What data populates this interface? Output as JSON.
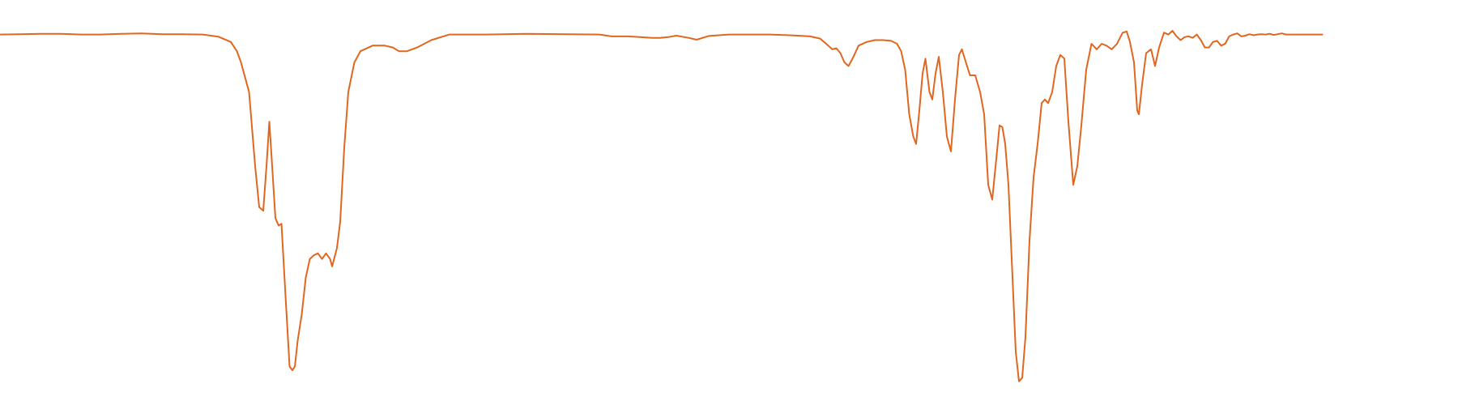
{
  "chart_data": {
    "type": "line",
    "title": "",
    "xlabel": "",
    "ylabel": "",
    "axes_visible": false,
    "grid": false,
    "legend": "none",
    "x_direction": "decreasing",
    "xlim": [
      4000,
      400
    ],
    "ylim": [
      0,
      100
    ],
    "color": "#e1661e",
    "series": [
      {
        "values": [
          [
            4000,
            95.5
          ],
          [
            3950,
            95.6
          ],
          [
            3900,
            95.7
          ],
          [
            3850,
            95.7
          ],
          [
            3800,
            95.5
          ],
          [
            3750,
            95.5
          ],
          [
            3700,
            95.7
          ],
          [
            3650,
            95.8
          ],
          [
            3600,
            95.6
          ],
          [
            3550,
            95.6
          ],
          [
            3500,
            95.5
          ],
          [
            3460,
            94.9
          ],
          [
            3430,
            93.5
          ],
          [
            3415,
            91.0
          ],
          [
            3405,
            88.0
          ],
          [
            3395,
            84.0
          ],
          [
            3385,
            80.0
          ],
          [
            3370,
            60.0
          ],
          [
            3360,
            49.0
          ],
          [
            3350,
            48.0
          ],
          [
            3342,
            60.0
          ],
          [
            3335,
            72.0
          ],
          [
            3328,
            60.0
          ],
          [
            3320,
            46.0
          ],
          [
            3312,
            44.0
          ],
          [
            3305,
            44.5
          ],
          [
            3295,
            25.0
          ],
          [
            3285,
            6.0
          ],
          [
            3278,
            5.0
          ],
          [
            3272,
            6.0
          ],
          [
            3265,
            13.0
          ],
          [
            3255,
            20.0
          ],
          [
            3245,
            30.0
          ],
          [
            3235,
            35.0
          ],
          [
            3225,
            36.0
          ],
          [
            3215,
            36.5
          ],
          [
            3205,
            35.0
          ],
          [
            3195,
            36.5
          ],
          [
            3185,
            35.0
          ],
          [
            3180,
            33.0
          ],
          [
            3175,
            35.0
          ],
          [
            3168,
            38.0
          ],
          [
            3160,
            45.0
          ],
          [
            3150,
            65.0
          ],
          [
            3140,
            80.0
          ],
          [
            3125,
            88.0
          ],
          [
            3110,
            91.0
          ],
          [
            3080,
            92.5
          ],
          [
            3050,
            92.5
          ],
          [
            3030,
            92.0
          ],
          [
            3015,
            91.0
          ],
          [
            2995,
            91.0
          ],
          [
            2970,
            92.0
          ],
          [
            2935,
            94.0
          ],
          [
            2890,
            95.5
          ],
          [
            2800,
            95.5
          ],
          [
            2700,
            95.7
          ],
          [
            2600,
            95.6
          ],
          [
            2520,
            95.5
          ],
          [
            2490,
            95.0
          ],
          [
            2450,
            95.0
          ],
          [
            2420,
            94.8
          ],
          [
            2390,
            94.6
          ],
          [
            2370,
            94.6
          ],
          [
            2350,
            94.8
          ],
          [
            2330,
            95.2
          ],
          [
            2300,
            94.6
          ],
          [
            2280,
            94.1
          ],
          [
            2250,
            95.1
          ],
          [
            2200,
            95.5
          ],
          [
            2150,
            95.5
          ],
          [
            2100,
            95.5
          ],
          [
            2050,
            95.3
          ],
          [
            2000,
            95.0
          ],
          [
            1975,
            94.4
          ],
          [
            1955,
            92.5
          ],
          [
            1945,
            91.5
          ],
          [
            1935,
            91.8
          ],
          [
            1925,
            90.5
          ],
          [
            1915,
            88.0
          ],
          [
            1905,
            87.0
          ],
          [
            1895,
            89.0
          ],
          [
            1880,
            92.5
          ],
          [
            1860,
            93.5
          ],
          [
            1840,
            94.0
          ],
          [
            1820,
            94.0
          ],
          [
            1800,
            93.8
          ],
          [
            1785,
            93.0
          ],
          [
            1775,
            91.0
          ],
          [
            1765,
            86.0
          ],
          [
            1755,
            74.0
          ],
          [
            1745,
            68.0
          ],
          [
            1738,
            66.0
          ],
          [
            1730,
            75.0
          ],
          [
            1722,
            85.0
          ],
          [
            1715,
            89.0
          ],
          [
            1705,
            80.0
          ],
          [
            1698,
            78.0
          ],
          [
            1690,
            85.0
          ],
          [
            1682,
            89.5
          ],
          [
            1672,
            80.0
          ],
          [
            1662,
            68.0
          ],
          [
            1652,
            64.0
          ],
          [
            1642,
            78.0
          ],
          [
            1632,
            90.0
          ],
          [
            1625,
            91.5
          ],
          [
            1615,
            88.0
          ],
          [
            1605,
            84.5
          ],
          [
            1592,
            84.5
          ],
          [
            1580,
            80.0
          ],
          [
            1570,
            74.0
          ],
          [
            1560,
            55.0
          ],
          [
            1550,
            51.0
          ],
          [
            1540,
            62.0
          ],
          [
            1532,
            71.0
          ],
          [
            1525,
            70.5
          ],
          [
            1518,
            66.0
          ],
          [
            1510,
            55.0
          ],
          [
            1500,
            30.0
          ],
          [
            1492,
            10.0
          ],
          [
            1484,
            2.0
          ],
          [
            1476,
            3.0
          ],
          [
            1468,
            14.0
          ],
          [
            1458,
            40.0
          ],
          [
            1448,
            57.0
          ],
          [
            1438,
            66.0
          ],
          [
            1428,
            77.0
          ],
          [
            1420,
            78.0
          ],
          [
            1412,
            77.0
          ],
          [
            1402,
            80.0
          ],
          [
            1392,
            87.0
          ],
          [
            1382,
            90.0
          ],
          [
            1372,
            89.0
          ],
          [
            1362,
            72.0
          ],
          [
            1350,
            55.0
          ],
          [
            1340,
            60.0
          ],
          [
            1330,
            71.0
          ],
          [
            1318,
            86.0
          ],
          [
            1305,
            93.0
          ],
          [
            1292,
            91.5
          ],
          [
            1280,
            93.0
          ],
          [
            1268,
            92.5
          ],
          [
            1255,
            91.5
          ],
          [
            1242,
            93.0
          ],
          [
            1228,
            96.0
          ],
          [
            1218,
            96.3
          ],
          [
            1210,
            93.5
          ],
          [
            1200,
            88.0
          ],
          [
            1192,
            75.0
          ],
          [
            1188,
            74.0
          ],
          [
            1180,
            82.0
          ],
          [
            1170,
            90.5
          ],
          [
            1158,
            91.5
          ],
          [
            1148,
            87.0
          ],
          [
            1138,
            92.0
          ],
          [
            1126,
            96.0
          ],
          [
            1115,
            95.5
          ],
          [
            1105,
            96.5
          ],
          [
            1095,
            95.0
          ],
          [
            1085,
            94.0
          ],
          [
            1075,
            94.8
          ],
          [
            1065,
            95.0
          ],
          [
            1055,
            94.6
          ],
          [
            1045,
            95.5
          ],
          [
            1035,
            94.0
          ],
          [
            1025,
            92.0
          ],
          [
            1015,
            92.0
          ],
          [
            1005,
            93.5
          ],
          [
            995,
            93.8
          ],
          [
            985,
            92.5
          ],
          [
            975,
            93.0
          ],
          [
            965,
            95.0
          ],
          [
            955,
            95.5
          ],
          [
            945,
            95.8
          ],
          [
            935,
            95.0
          ],
          [
            925,
            95.2
          ],
          [
            915,
            95.6
          ],
          [
            905,
            95.3
          ],
          [
            895,
            95.5
          ],
          [
            885,
            95.6
          ],
          [
            875,
            95.5
          ],
          [
            865,
            95.7
          ],
          [
            855,
            95.4
          ],
          [
            845,
            95.6
          ],
          [
            835,
            95.8
          ],
          [
            825,
            95.5
          ],
          [
            815,
            95.5
          ],
          [
            805,
            95.5
          ],
          [
            795,
            95.5
          ],
          [
            785,
            95.5
          ],
          [
            775,
            95.5
          ],
          [
            765,
            95.5
          ],
          [
            755,
            95.5
          ],
          [
            745,
            95.5
          ],
          [
            735,
            95.5
          ]
        ]
      }
    ]
  }
}
